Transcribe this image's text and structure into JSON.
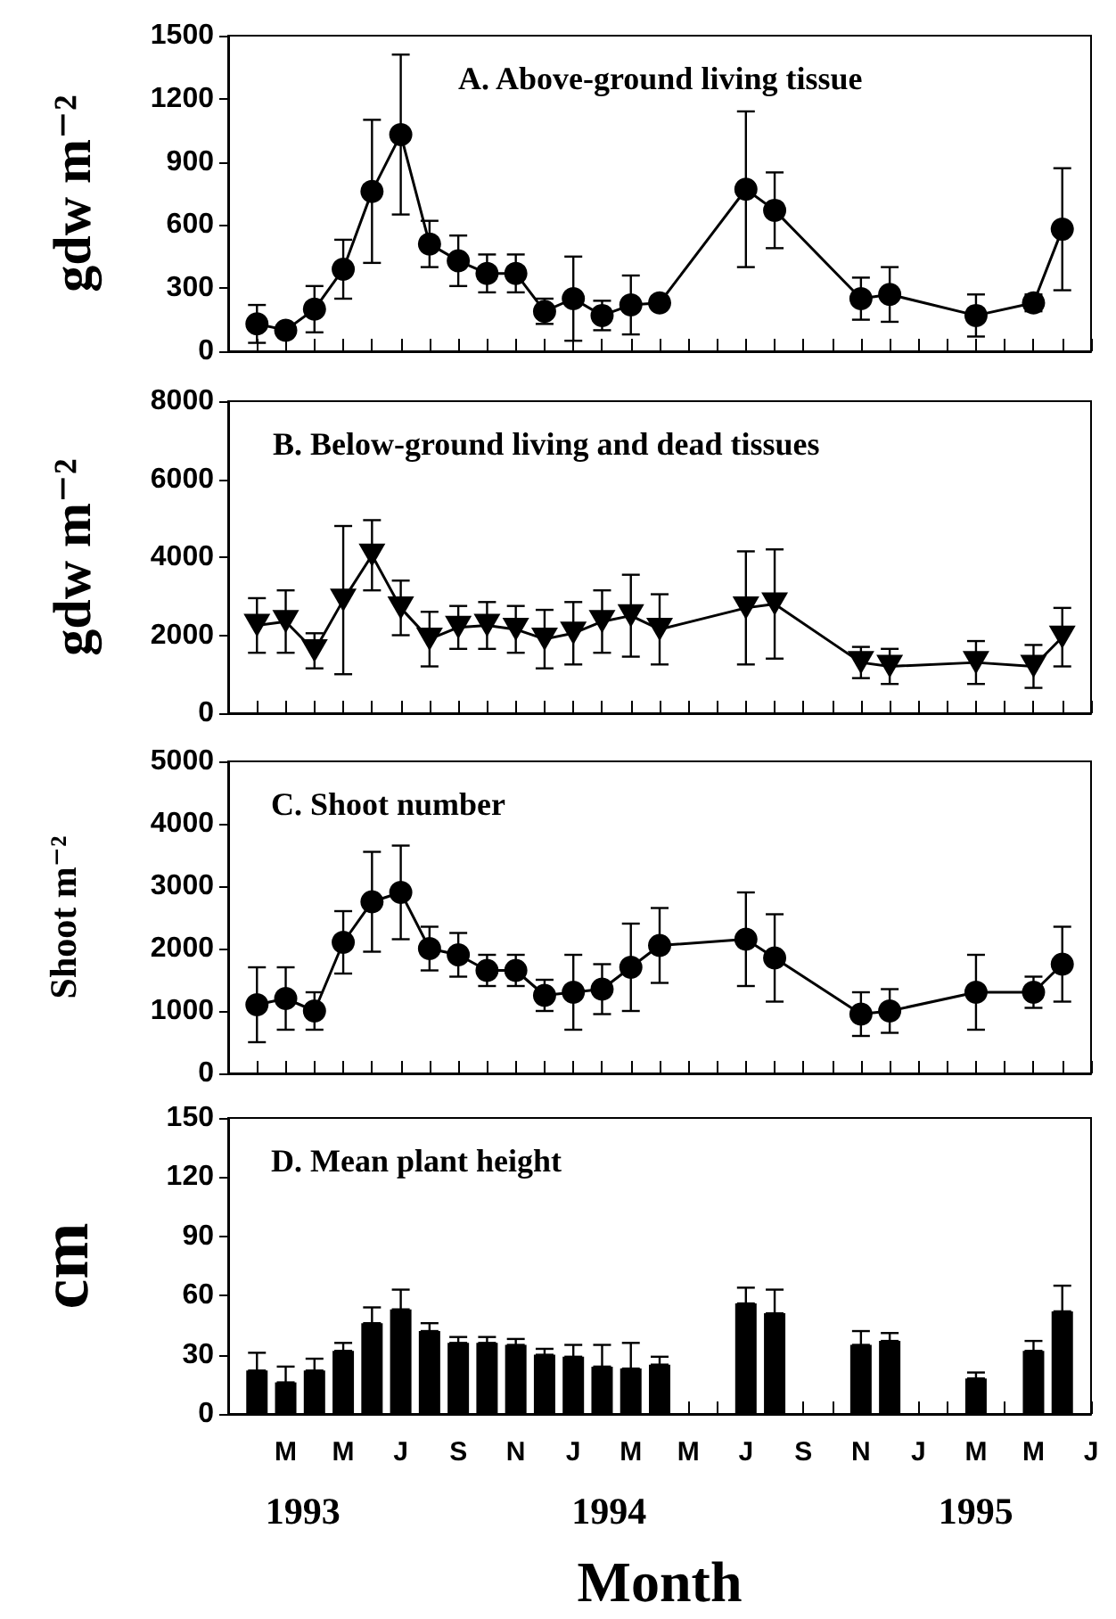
{
  "chart_data": [
    {
      "type": "line",
      "title": "A. Above-ground living tissue",
      "ylabel": "gdw m⁻²",
      "categories": [
        null,
        null,
        null,
        null,
        null,
        null,
        null,
        null,
        null,
        null,
        null,
        null,
        null,
        null,
        null,
        null,
        null,
        null,
        null,
        null,
        null,
        null,
        null,
        null,
        null,
        null,
        null,
        null,
        null,
        null,
        null
      ],
      "values": [
        null,
        130,
        100,
        200,
        390,
        760,
        1030,
        510,
        430,
        370,
        370,
        190,
        250,
        170,
        220,
        230,
        null,
        null,
        770,
        670,
        null,
        null,
        250,
        270,
        null,
        null,
        170,
        null,
        230,
        580,
        null
      ],
      "errors": [
        null,
        90,
        20,
        110,
        140,
        340,
        380,
        110,
        120,
        90,
        90,
        60,
        200,
        70,
        140,
        30,
        null,
        null,
        370,
        180,
        null,
        null,
        100,
        130,
        null,
        null,
        100,
        null,
        40,
        290,
        null
      ],
      "color": "#000000",
      "marker": "circle",
      "line_style": "solid",
      "grid": false,
      "tick_labels": "y",
      "ylim": [
        0,
        1500
      ],
      "yticks": [
        0,
        300,
        600,
        900,
        1200,
        1500
      ]
    },
    {
      "type": "line",
      "title": "B. Below-ground living and dead tissues",
      "ylabel": "gdw m⁻²",
      "categories": [
        null,
        null,
        null,
        null,
        null,
        null,
        null,
        null,
        null,
        null,
        null,
        null,
        null,
        null,
        null,
        null,
        null,
        null,
        null,
        null,
        null,
        null,
        null,
        null,
        null,
        null,
        null,
        null,
        null,
        null,
        null
      ],
      "values": [
        null,
        2250,
        2350,
        1600,
        2900,
        4050,
        2700,
        1900,
        2200,
        2250,
        2150,
        1900,
        2050,
        2350,
        2500,
        2150,
        null,
        null,
        2700,
        2800,
        null,
        null,
        1300,
        1200,
        null,
        null,
        1300,
        null,
        1200,
        1950,
        null
      ],
      "errors": [
        null,
        700,
        800,
        450,
        1900,
        900,
        700,
        700,
        550,
        600,
        600,
        750,
        800,
        800,
        1050,
        900,
        null,
        null,
        1450,
        1400,
        null,
        null,
        400,
        450,
        null,
        null,
        550,
        null,
        550,
        750,
        null
      ],
      "color": "#000000",
      "marker": "triangle",
      "line_style": "solid",
      "grid": false,
      "tick_labels": "y",
      "ylim": [
        0,
        8000
      ],
      "yticks": [
        0,
        2000,
        4000,
        6000,
        8000
      ]
    },
    {
      "type": "line",
      "title": "C. Shoot number",
      "ylabel": "Shoot m⁻²",
      "categories": [
        null,
        null,
        null,
        null,
        null,
        null,
        null,
        null,
        null,
        null,
        null,
        null,
        null,
        null,
        null,
        null,
        null,
        null,
        null,
        null,
        null,
        null,
        null,
        null,
        null,
        null,
        null,
        null,
        null,
        null,
        null
      ],
      "values": [
        null,
        1100,
        1200,
        1000,
        2100,
        2750,
        2900,
        2000,
        1900,
        1650,
        1650,
        1250,
        1300,
        1350,
        1700,
        2050,
        null,
        null,
        2150,
        1850,
        null,
        null,
        950,
        1000,
        null,
        null,
        1300,
        null,
        1300,
        1750,
        null
      ],
      "errors": [
        null,
        600,
        500,
        300,
        500,
        800,
        750,
        350,
        350,
        250,
        250,
        250,
        600,
        400,
        700,
        600,
        null,
        null,
        750,
        700,
        null,
        null,
        350,
        350,
        null,
        null,
        600,
        null,
        250,
        600,
        null
      ],
      "color": "#000000",
      "marker": "circle",
      "line_style": "solid",
      "grid": false,
      "tick_labels": "y",
      "ylim": [
        0,
        5000
      ],
      "yticks": [
        0,
        1000,
        2000,
        3000,
        4000,
        5000
      ]
    },
    {
      "type": "bar",
      "title": "D. Mean plant height",
      "ylabel": "cm",
      "xlabel": "Month",
      "annotations": [
        "1993",
        "1994",
        "1995"
      ],
      "categories": [
        null,
        null,
        "M",
        null,
        "M",
        null,
        "J",
        null,
        "S",
        null,
        "N",
        null,
        "J",
        null,
        "M",
        null,
        "M",
        null,
        "J",
        null,
        "S",
        null,
        "N",
        null,
        "J",
        null,
        "M",
        null,
        "M",
        null,
        "J"
      ],
      "values": [
        null,
        22,
        16,
        22,
        32,
        46,
        53,
        42,
        36,
        36,
        35,
        30,
        29,
        24,
        23,
        25,
        null,
        null,
        56,
        51,
        null,
        null,
        35,
        37,
        null,
        null,
        18,
        null,
        32,
        52,
        null
      ],
      "errors": [
        null,
        [
          22,
          31
        ],
        [
          16,
          24
        ],
        [
          22,
          28
        ],
        [
          32,
          36
        ],
        [
          46,
          54
        ],
        [
          53,
          63
        ],
        [
          42,
          46
        ],
        [
          36,
          39
        ],
        [
          36,
          39
        ],
        [
          35,
          38
        ],
        [
          30,
          33
        ],
        [
          29,
          35
        ],
        [
          24,
          35
        ],
        [
          23,
          36
        ],
        [
          25,
          29
        ],
        null,
        null,
        [
          56,
          64
        ],
        [
          51,
          63
        ],
        null,
        null,
        [
          35,
          42
        ],
        [
          37,
          41
        ],
        null,
        null,
        [
          18,
          21
        ],
        null,
        [
          32,
          37
        ],
        [
          52,
          65
        ],
        null
      ],
      "color": "#000000",
      "grid": false,
      "ylim": [
        0,
        150
      ],
      "yticks": [
        0,
        30,
        60,
        90,
        120,
        150
      ]
    }
  ]
}
